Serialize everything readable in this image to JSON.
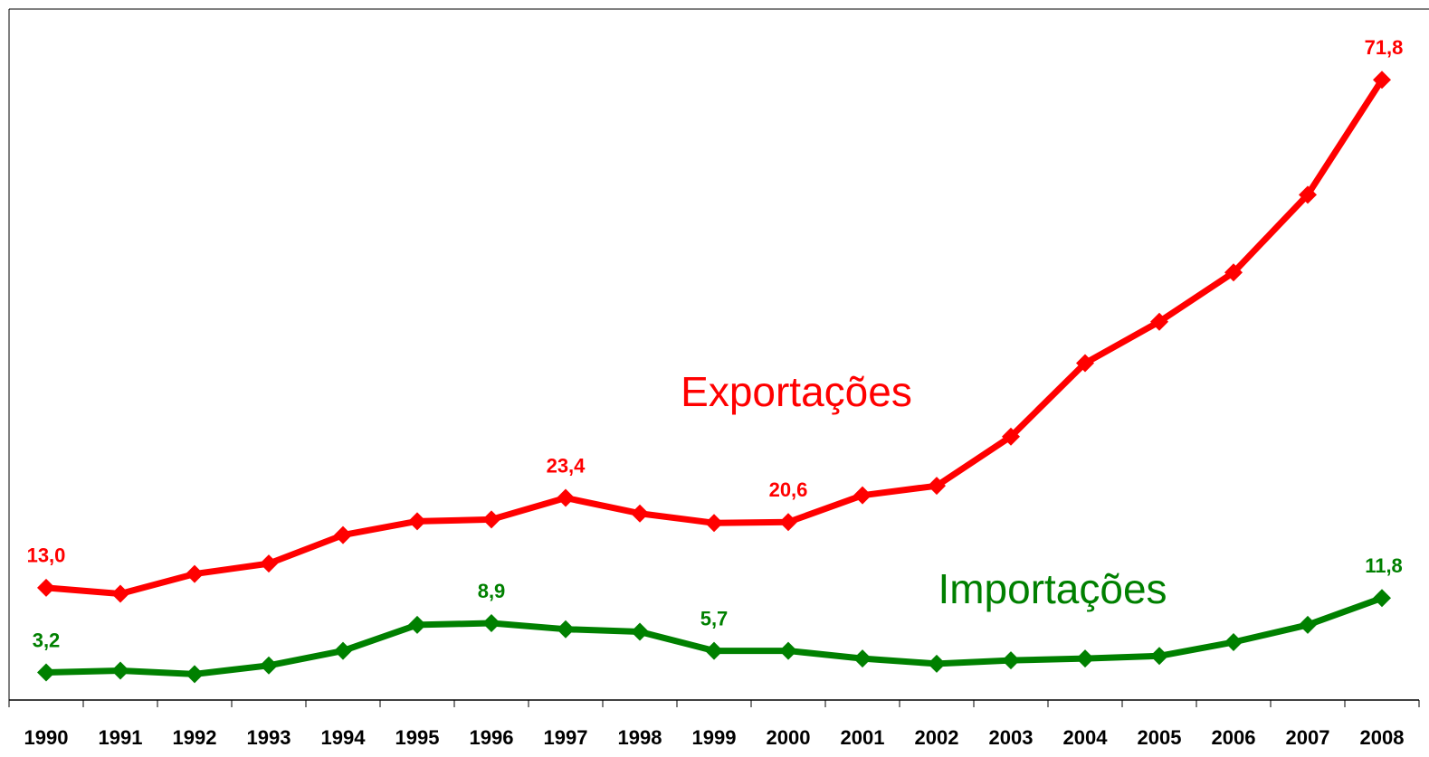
{
  "chart_data": {
    "type": "line",
    "categories": [
      "1990",
      "1991",
      "1992",
      "1993",
      "1994",
      "1995",
      "1996",
      "1997",
      "1998",
      "1999",
      "2000",
      "2001",
      "2002",
      "2003",
      "2004",
      "2005",
      "2006",
      "2007",
      "2008"
    ],
    "series": [
      {
        "name": "Exportações",
        "color": "#ff0000",
        "values": [
          13.0,
          12.3,
          14.6,
          15.8,
          19.1,
          20.7,
          20.9,
          23.4,
          21.6,
          20.5,
          20.6,
          23.7,
          24.8,
          30.5,
          39.0,
          43.8,
          49.5,
          58.5,
          71.8
        ],
        "value_labels": [
          "13,0",
          null,
          null,
          null,
          null,
          null,
          null,
          "23,4",
          null,
          null,
          "20,6",
          null,
          null,
          null,
          null,
          null,
          null,
          null,
          "71,8"
        ]
      },
      {
        "name": "Importações",
        "color": "#008000",
        "values": [
          3.2,
          3.4,
          3.0,
          4.0,
          5.7,
          8.7,
          8.9,
          8.2,
          7.9,
          5.7,
          5.7,
          4.8,
          4.2,
          4.6,
          4.8,
          5.1,
          6.7,
          8.7,
          11.8
        ],
        "value_labels": [
          "3,2",
          null,
          null,
          null,
          null,
          null,
          "8,9",
          null,
          null,
          "5,7",
          null,
          null,
          null,
          null,
          null,
          null,
          null,
          null,
          "11,8"
        ]
      }
    ],
    "ylim": [
      0,
      80
    ]
  }
}
